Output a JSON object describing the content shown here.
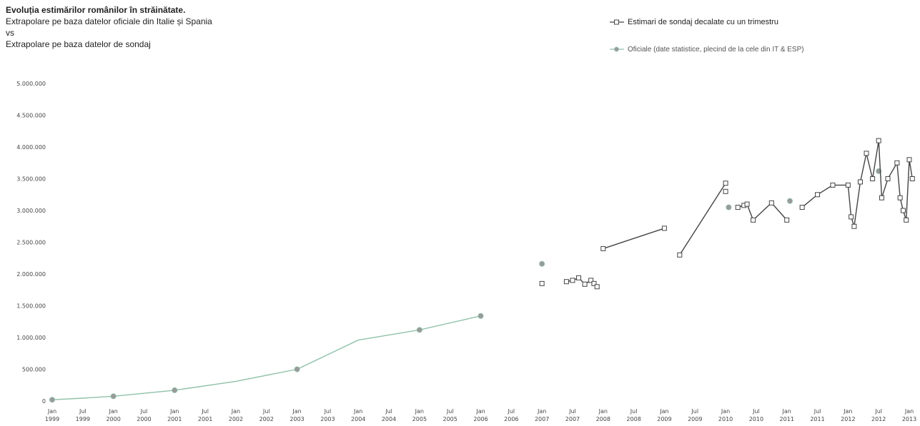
{
  "title": {
    "line1": "Evoluția estimărilor românilor în străinătate.",
    "line2": "Extrapolare pe baza datelor oficiale din Italie și Spania",
    "line3": "vs",
    "line4": "Extrapolare pe baza datelor de sondaj"
  },
  "legend": {
    "survey": "Estimari de sondaj decalate cu un trimestru",
    "official": "Oficiale (date statistice, plecind de la cele din IT & ESP)"
  },
  "colors": {
    "survey": "#444444",
    "official": "#8fc1a9",
    "official_point": "#9a9a9a"
  },
  "chart_data": {
    "type": "line",
    "ylim": [
      0,
      5000000
    ],
    "yticks": [
      0,
      500000,
      1000000,
      1500000,
      2000000,
      2500000,
      3000000,
      3500000,
      4000000,
      4500000,
      5000000
    ],
    "ytick_labels": [
      "0",
      "500.000",
      "1.000.000",
      "1.500.000",
      "2.000.000",
      "2.500.000",
      "3.000.000",
      "3.500.000",
      "4.000.000",
      "4.500.000",
      "5.000.000"
    ],
    "xlim": [
      1999.0,
      2013.0
    ],
    "xticks": [
      1999.0,
      1999.5,
      2000.0,
      2000.5,
      2001.0,
      2001.5,
      2002.0,
      2002.5,
      2003.0,
      2003.5,
      2004.0,
      2004.5,
      2005.0,
      2005.5,
      2006.0,
      2006.5,
      2007.0,
      2007.5,
      2008.0,
      2008.5,
      2009.0,
      2009.5,
      2010.0,
      2010.5,
      2011.0,
      2011.5,
      2012.0,
      2012.5,
      2013.0
    ],
    "xtick_labels": [
      [
        "Jan",
        "1999"
      ],
      [
        "Jul",
        "1999"
      ],
      [
        "Jan",
        "2000"
      ],
      [
        "Jul",
        "2000"
      ],
      [
        "Jan",
        "2001"
      ],
      [
        "Jul",
        "2001"
      ],
      [
        "Jan",
        "2002"
      ],
      [
        "Jul",
        "2002"
      ],
      [
        "Jan",
        "2003"
      ],
      [
        "Jul",
        "2003"
      ],
      [
        "Jan",
        "2004"
      ],
      [
        "Jul",
        "2004"
      ],
      [
        "Jan",
        "2005"
      ],
      [
        "Jul",
        "2005"
      ],
      [
        "Jan",
        "2006"
      ],
      [
        "Jul",
        "2006"
      ],
      [
        "Jan",
        "2007"
      ],
      [
        "Jul",
        "2007"
      ],
      [
        "Jan",
        "2008"
      ],
      [
        "Jul",
        "2008"
      ],
      [
        "Jan",
        "2009"
      ],
      [
        "Jul",
        "2009"
      ],
      [
        "Jan",
        "2010"
      ],
      [
        "Jul",
        "2010"
      ],
      [
        "Jan",
        "2011"
      ],
      [
        "Jul",
        "2011"
      ],
      [
        "Jan",
        "2012"
      ],
      [
        "Jul",
        "2012"
      ],
      [
        "Jan",
        "2013"
      ]
    ],
    "series": [
      {
        "name": "Oficiale (date statistice, plecind de la cele din IT & ESP)",
        "segments": [
          [
            [
              1999.0,
              20000
            ],
            [
              1999.5,
              45000
            ],
            [
              2000.0,
              75000
            ],
            [
              2001.0,
              170000
            ],
            [
              2002.0,
              310000
            ],
            [
              2003.0,
              500000
            ],
            [
              2004.0,
              960000
            ],
            [
              2005.0,
              1120000
            ],
            [
              2006.0,
              1340000
            ]
          ]
        ],
        "points": [
          [
            1999.0,
            20000
          ],
          [
            2000.0,
            75000
          ],
          [
            2001.0,
            170000
          ],
          [
            2003.0,
            500000
          ],
          [
            2005.0,
            1120000
          ],
          [
            2006.0,
            1340000
          ],
          [
            2007.0,
            2160000
          ],
          [
            2010.05,
            3050000
          ],
          [
            2011.05,
            3150000
          ],
          [
            2012.5,
            3620000
          ]
        ]
      },
      {
        "name": "Estimari de sondaj decalate cu un trimestru",
        "segments": [
          [
            [
              2007.4,
              1880000
            ],
            [
              2007.5,
              1900000
            ],
            [
              2007.6,
              1940000
            ],
            [
              2007.7,
              1840000
            ],
            [
              2007.8,
              1900000
            ],
            [
              2007.85,
              1850000
            ],
            [
              2007.9,
              1800000
            ]
          ],
          [
            [
              2008.0,
              2400000
            ],
            [
              2009.0,
              2720000
            ]
          ],
          [
            [
              2009.25,
              2300000
            ],
            [
              2010.0,
              3430000
            ]
          ],
          [
            [
              2010.2,
              3050000
            ],
            [
              2010.3,
              3080000
            ],
            [
              2010.35,
              3100000
            ],
            [
              2010.45,
              2850000
            ],
            [
              2010.75,
              3120000
            ],
            [
              2011.0,
              2850000
            ]
          ],
          [
            [
              2011.25,
              3050000
            ],
            [
              2011.5,
              3250000
            ],
            [
              2011.75,
              3400000
            ],
            [
              2012.0,
              3400000
            ],
            [
              2012.05,
              2900000
            ],
            [
              2012.1,
              2750000
            ],
            [
              2012.2,
              3450000
            ],
            [
              2012.3,
              3900000
            ],
            [
              2012.4,
              3500000
            ],
            [
              2012.5,
              4100000
            ],
            [
              2012.55,
              3200000
            ],
            [
              2012.65,
              3500000
            ],
            [
              2012.8,
              3750000
            ],
            [
              2012.85,
              3200000
            ],
            [
              2012.9,
              3000000
            ],
            [
              2012.95,
              2850000
            ],
            [
              2013.0,
              3800000
            ],
            [
              2013.05,
              3500000
            ]
          ]
        ],
        "points": [
          [
            2007.0,
            1850000
          ],
          [
            2010.0,
            3300000
          ]
        ]
      }
    ]
  }
}
